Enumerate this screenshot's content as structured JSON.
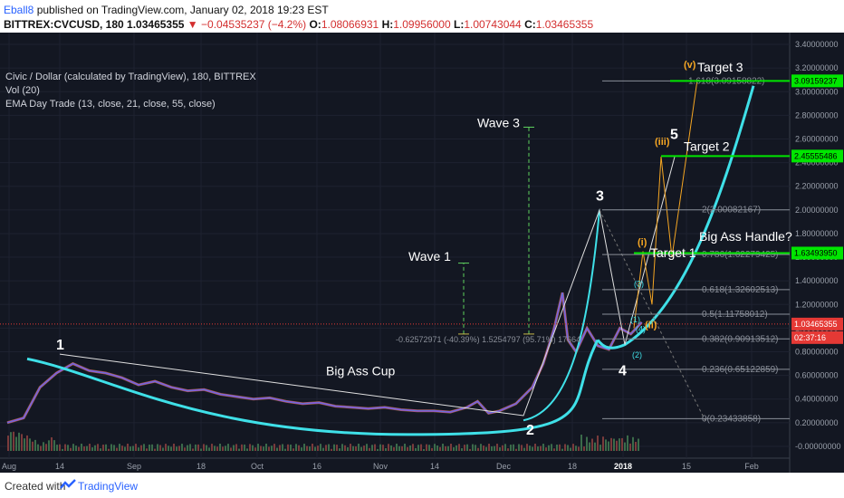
{
  "header": {
    "author": "Eball8",
    "published": "published on TradingView.com, January 02, 2018 19:23 EST",
    "symbol": "BITTREX:CVCUSD, 180",
    "last": "1.03465355",
    "change": "−0.04535237 (−4.2%)",
    "open_label": "O:",
    "open": "1.08066931",
    "high_label": "H:",
    "high": "1.09956000",
    "low_label": "L:",
    "low": "1.00743044",
    "close_label": "C:",
    "close": "1.03465355"
  },
  "legend": {
    "title": "Civic / Dollar (calculated by TradingView), 180, BITTREX",
    "vol": "Vol (20)",
    "ema": "EMA Day Trade (13, close, 21, close, 55, close)"
  },
  "footer": {
    "created": "Created with",
    "brand": "TradingView"
  },
  "colors": {
    "bg": "#131722",
    "cyan": "#3fe0e8",
    "green": "#00e600",
    "orange": "#f5a623",
    "white": "#e0e0e0",
    "red": "#e53935",
    "grid": "#1e2230"
  },
  "chart_data": {
    "type": "line",
    "y_ticks": [
      "3.40000000",
      "3.20000000",
      "3.00000000",
      "2.80000000",
      "2.60000000",
      "2.40000000",
      "2.20000000",
      "2.00000000",
      "1.80000000",
      "1.60000000",
      "1.40000000",
      "1.20000000",
      "1.00000000",
      "0.80000000",
      "0.60000000",
      "0.40000000",
      "0.20000000",
      "-0.00000000"
    ],
    "x_ticks": [
      "Aug",
      "14",
      "Sep",
      "18",
      "Oct",
      "16",
      "Nov",
      "14",
      "Dec",
      "18",
      "2018",
      "15",
      "Feb"
    ],
    "ylim": [
      -0.1,
      3.5
    ],
    "price_tags": [
      {
        "value": 3.09159237,
        "label": "3.09159237",
        "color": "#00e600"
      },
      {
        "value": 2.45555486,
        "label": "2.45555486",
        "color": "#00e600"
      },
      {
        "value": 1.6349395,
        "label": "1.63493950",
        "color": "#00e600"
      },
      {
        "value": 1.03465355,
        "label": "1.03465355",
        "color": "#e53935"
      },
      {
        "value": 0.92,
        "label": "02:37:16",
        "color": "#e53935"
      }
    ],
    "fib_levels": [
      {
        "label": "2(2.00082167)",
        "value": 2.00082167
      },
      {
        "label": "0.786(1.62279425)",
        "value": 1.62279425
      },
      {
        "label": "0.618(1.32602513)",
        "value": 1.32602513
      },
      {
        "label": "0.5(1.11758012)",
        "value": 1.11758012
      },
      {
        "label": "0.382(0.90913512)",
        "value": 0.90913512
      },
      {
        "label": "0.236(0.65122859)",
        "value": 0.65122859
      },
      {
        "label": "0(0.23433858)",
        "value": 0.23433858
      },
      {
        "label": "1.618(3.09158822)",
        "value": 3.09158822
      }
    ],
    "price_series": [
      [
        0,
        0.2
      ],
      [
        6,
        0.24
      ],
      [
        12,
        0.5
      ],
      [
        18,
        0.62
      ],
      [
        24,
        0.7
      ],
      [
        30,
        0.64
      ],
      [
        36,
        0.62
      ],
      [
        42,
        0.58
      ],
      [
        48,
        0.52
      ],
      [
        54,
        0.55
      ],
      [
        60,
        0.5
      ],
      [
        66,
        0.47
      ],
      [
        72,
        0.48
      ],
      [
        78,
        0.44
      ],
      [
        84,
        0.42
      ],
      [
        90,
        0.4
      ],
      [
        96,
        0.41
      ],
      [
        102,
        0.38
      ],
      [
        108,
        0.36
      ],
      [
        114,
        0.37
      ],
      [
        120,
        0.34
      ],
      [
        126,
        0.33
      ],
      [
        132,
        0.32
      ],
      [
        138,
        0.33
      ],
      [
        144,
        0.31
      ],
      [
        150,
        0.3
      ],
      [
        156,
        0.3
      ],
      [
        162,
        0.29
      ],
      [
        168,
        0.33
      ],
      [
        172,
        0.38
      ],
      [
        176,
        0.28
      ],
      [
        180,
        0.3
      ],
      [
        186,
        0.36
      ],
      [
        192,
        0.5
      ],
      [
        196,
        0.7
      ],
      [
        200,
        1.0
      ],
      [
        203,
        1.3
      ],
      [
        205,
        0.9
      ],
      [
        208,
        0.8
      ],
      [
        212,
        1.0
      ],
      [
        216,
        0.85
      ],
      [
        220,
        0.82
      ],
      [
        224,
        1.0
      ],
      [
        228,
        0.95
      ],
      [
        232,
        1.05
      ]
    ],
    "labels": {
      "wave1": "Wave 1",
      "wave3": "Wave 3",
      "cup": "Big Ass Cup",
      "handle": "Big Ass Handle?",
      "target1": "Target 1",
      "target2": "Target 2",
      "target3": "Target 3",
      "e1": "1",
      "e2": "2",
      "e3": "3",
      "e4": "4",
      "e5": "5",
      "sub_i": "(i)",
      "sub_ii": "(ii)",
      "sub_iii": "(iii)",
      "sub_v": "(v)",
      "c1": "(1)",
      "c2": "(2)",
      "c3": "(3)",
      "c4": "(4)",
      "measure": "-0.62572971 (-40.39%) 1.5254797 (95.71%) 17664"
    }
  }
}
